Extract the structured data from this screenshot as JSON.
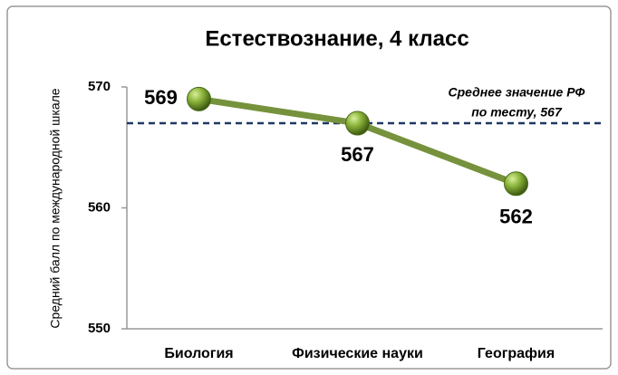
{
  "chart_data": {
    "type": "line",
    "title": "Естествознание, 4 класс",
    "y_axis_label": "Средний балл  по международной шкале",
    "categories": [
      "Биология",
      "Физические науки",
      "География"
    ],
    "series": [
      {
        "name": "Естествознание",
        "color": "#76923c",
        "values": [
          569,
          567,
          562
        ]
      }
    ],
    "ylim": [
      550,
      570
    ],
    "yticks": [
      550,
      560,
      570
    ],
    "reference_line": {
      "value": 567,
      "color": "#1f3864",
      "label": [
        "Среднее  значение РФ",
        "по тесту, 567"
      ]
    }
  }
}
